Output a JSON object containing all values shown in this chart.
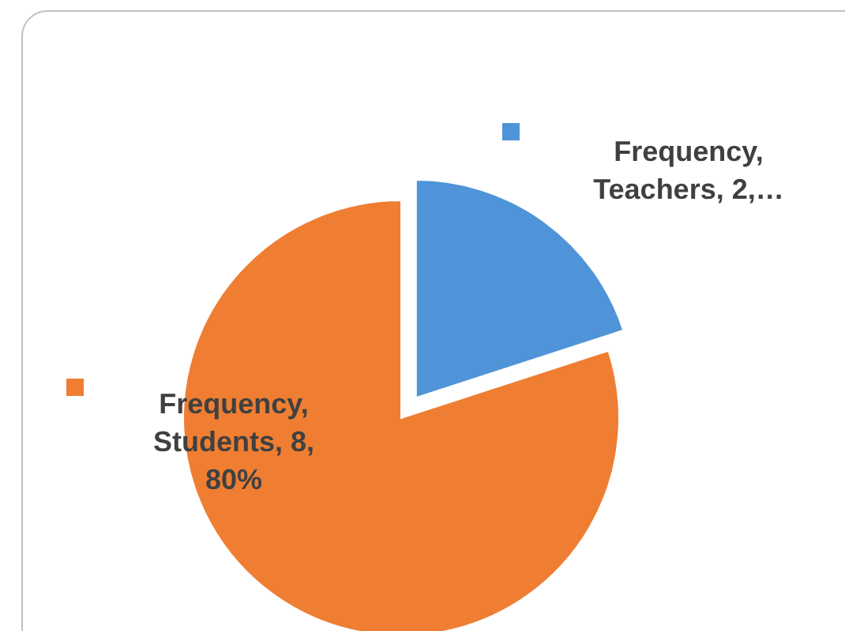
{
  "chart_data": {
    "type": "pie",
    "categories": [
      "Teachers",
      "Students"
    ],
    "colors": [
      "#4f94d8",
      "#ef7e33"
    ],
    "series": [
      {
        "name": "Frequency,",
        "values": [
          2,
          8
        ],
        "value_labels": [
          "2,…",
          "8, 80%"
        ]
      }
    ]
  }
}
